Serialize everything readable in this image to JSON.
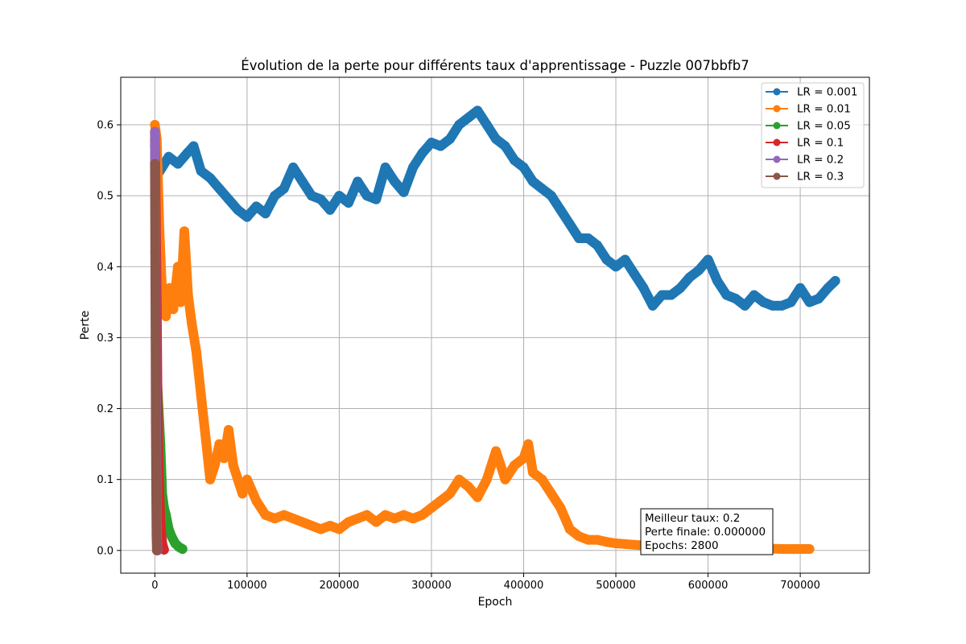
{
  "chart_data": {
    "type": "line",
    "title": "Évolution de la perte pour différents taux d'apprentissage - Puzzle 007bbfb7",
    "xlabel": "Epoch",
    "ylabel": "Perte",
    "xlim": [
      -37000,
      775000
    ],
    "ylim": [
      -0.032,
      0.667
    ],
    "xticks": [
      0,
      100000,
      200000,
      300000,
      400000,
      500000,
      600000,
      700000
    ],
    "xtick_labels": [
      "0",
      "100000",
      "200000",
      "300000",
      "400000",
      "500000",
      "600000",
      "700000"
    ],
    "yticks": [
      0.0,
      0.1,
      0.2,
      0.3,
      0.4,
      0.5,
      0.6
    ],
    "ytick_labels": [
      "0.0",
      "0.1",
      "0.2",
      "0.3",
      "0.4",
      "0.5",
      "0.6"
    ],
    "grid": true,
    "legend_position": "top-right",
    "series": [
      {
        "name": "LR = 0.001",
        "color": "#1f77b4",
        "x": [
          0,
          3000,
          8000,
          15000,
          25000,
          35000,
          42000,
          50000,
          60000,
          70000,
          80000,
          90000,
          100000,
          110000,
          120000,
          130000,
          140000,
          150000,
          160000,
          170000,
          180000,
          190000,
          200000,
          210000,
          220000,
          230000,
          240000,
          250000,
          260000,
          270000,
          280000,
          290000,
          300000,
          310000,
          320000,
          330000,
          340000,
          350000,
          360000,
          370000,
          380000,
          390000,
          400000,
          410000,
          420000,
          430000,
          440000,
          450000,
          460000,
          470000,
          480000,
          490000,
          500000,
          510000,
          520000,
          530000,
          540000,
          550000,
          560000,
          570000,
          580000,
          590000,
          600000,
          610000,
          620000,
          630000,
          640000,
          650000,
          660000,
          670000,
          680000,
          690000,
          700000,
          710000,
          720000,
          730000,
          738000
        ],
        "y": [
          0.57,
          0.53,
          0.54,
          0.555,
          0.545,
          0.56,
          0.57,
          0.535,
          0.525,
          0.51,
          0.495,
          0.48,
          0.47,
          0.485,
          0.475,
          0.5,
          0.51,
          0.54,
          0.52,
          0.5,
          0.495,
          0.48,
          0.5,
          0.49,
          0.52,
          0.5,
          0.495,
          0.54,
          0.52,
          0.505,
          0.54,
          0.56,
          0.575,
          0.57,
          0.58,
          0.6,
          0.61,
          0.62,
          0.6,
          0.58,
          0.57,
          0.55,
          0.54,
          0.52,
          0.51,
          0.5,
          0.48,
          0.46,
          0.44,
          0.44,
          0.43,
          0.41,
          0.4,
          0.41,
          0.39,
          0.37,
          0.345,
          0.36,
          0.36,
          0.37,
          0.385,
          0.395,
          0.41,
          0.38,
          0.36,
          0.355,
          0.345,
          0.36,
          0.35,
          0.345,
          0.345,
          0.35,
          0.37,
          0.35,
          0.355,
          0.37,
          0.38
        ]
      },
      {
        "name": "LR = 0.01",
        "color": "#ff7f0e",
        "x": [
          0,
          2000,
          5000,
          8000,
          12000,
          16000,
          20000,
          25000,
          28000,
          32000,
          36000,
          40000,
          45000,
          50000,
          55000,
          60000,
          65000,
          70000,
          75000,
          80000,
          85000,
          90000,
          95000,
          100000,
          110000,
          120000,
          130000,
          140000,
          150000,
          160000,
          170000,
          180000,
          190000,
          200000,
          210000,
          220000,
          230000,
          240000,
          250000,
          260000,
          270000,
          280000,
          290000,
          300000,
          310000,
          320000,
          330000,
          340000,
          350000,
          360000,
          370000,
          375000,
          380000,
          390000,
          400000,
          405000,
          410000,
          420000,
          430000,
          440000,
          450000,
          460000,
          470000,
          480000,
          490000,
          500000,
          520000,
          540000,
          560000,
          580000,
          600000,
          620000,
          640000,
          660000,
          680000,
          700000,
          710000
        ],
        "y": [
          0.6,
          0.58,
          0.45,
          0.36,
          0.33,
          0.37,
          0.34,
          0.4,
          0.35,
          0.45,
          0.36,
          0.32,
          0.28,
          0.22,
          0.16,
          0.1,
          0.12,
          0.15,
          0.13,
          0.17,
          0.12,
          0.1,
          0.08,
          0.1,
          0.07,
          0.05,
          0.045,
          0.05,
          0.045,
          0.04,
          0.035,
          0.03,
          0.035,
          0.03,
          0.04,
          0.045,
          0.05,
          0.04,
          0.05,
          0.045,
          0.05,
          0.045,
          0.05,
          0.06,
          0.07,
          0.08,
          0.1,
          0.09,
          0.075,
          0.1,
          0.14,
          0.12,
          0.1,
          0.12,
          0.13,
          0.15,
          0.11,
          0.1,
          0.08,
          0.06,
          0.03,
          0.02,
          0.015,
          0.015,
          0.012,
          0.01,
          0.008,
          0.006,
          0.005,
          0.005,
          0.004,
          0.004,
          0.003,
          0.003,
          0.002,
          0.002,
          0.002
        ]
      },
      {
        "name": "LR = 0.05",
        "color": "#2ca02c",
        "x": [
          0,
          1000,
          2000,
          4000,
          6000,
          8000,
          10000,
          12000,
          15000,
          18000,
          22000,
          26000,
          30000
        ],
        "y": [
          0.58,
          0.42,
          0.25,
          0.2,
          0.15,
          0.08,
          0.06,
          0.05,
          0.03,
          0.02,
          0.01,
          0.005,
          0.002
        ]
      },
      {
        "name": "LR = 0.1",
        "color": "#d62728",
        "x": [
          0,
          500,
          1000,
          2000,
          3000,
          4000,
          5000,
          6000,
          8000,
          10000
        ],
        "y": [
          0.59,
          0.55,
          0.48,
          0.35,
          0.2,
          0.12,
          0.08,
          0.04,
          0.01,
          0.001
        ]
      },
      {
        "name": "LR = 0.2",
        "color": "#9467bd",
        "x": [
          0,
          300,
          600,
          1000,
          1500,
          2000,
          2500,
          2800
        ],
        "y": [
          0.59,
          0.52,
          0.45,
          0.3,
          0.15,
          0.05,
          0.01,
          0.0
        ]
      },
      {
        "name": "LR = 0.3",
        "color": "#8c564b",
        "x": [
          0,
          200,
          400,
          700,
          1000,
          1400,
          1800,
          2200
        ],
        "y": [
          0.545,
          0.5,
          0.42,
          0.3,
          0.18,
          0.08,
          0.02,
          0.0
        ]
      }
    ],
    "annotation": {
      "lines": [
        "Meilleur taux: 0.2",
        "Perte finale: 0.000000",
        "Epochs: 2800"
      ]
    }
  }
}
